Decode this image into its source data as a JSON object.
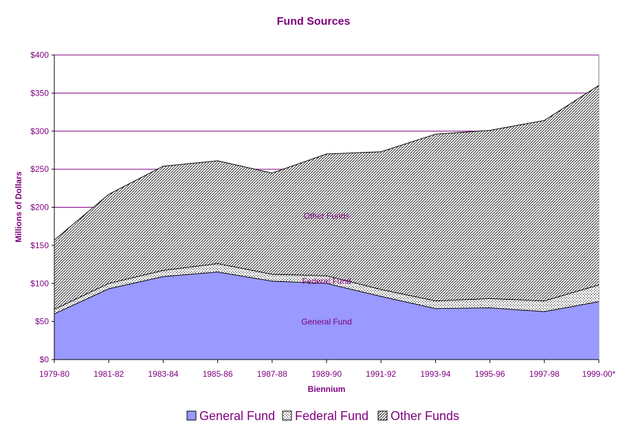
{
  "chart_data": {
    "type": "area",
    "stacked": true,
    "title": "Fund Sources",
    "xlabel": "Biennium",
    "ylabel": "Millions of Dollars",
    "ylim": [
      0,
      400
    ],
    "ytick_step": 50,
    "ytick_labels": [
      "$0",
      "$50",
      "$100",
      "$150",
      "$200",
      "$250",
      "$300",
      "$350",
      "$400"
    ],
    "categories": [
      "1979-80",
      "1981-82",
      "1983-84",
      "1985-86",
      "1987-88",
      "1989-90",
      "1991-92",
      "1993-94",
      "1995-96",
      "1997-98",
      "1999-00*"
    ],
    "series": [
      {
        "name": "General Fund",
        "values": [
          60,
          93,
          109,
          115,
          103,
          100,
          83,
          67,
          68,
          63,
          76
        ],
        "color": "#9999ff",
        "pattern": "solid",
        "label": "General Fund"
      },
      {
        "name": "Federal Fund",
        "values": [
          6,
          7,
          8,
          11,
          9,
          10,
          9,
          10,
          12,
          14,
          22
        ],
        "color": "#ffffff",
        "pattern": "dots",
        "label": "Federal Fund"
      },
      {
        "name": "Other Funds",
        "values": [
          91,
          117,
          137,
          135,
          133,
          160,
          181,
          219,
          221,
          237,
          262
        ],
        "color": "#ffffff",
        "pattern": "diagonal",
        "label": "Other Funds"
      }
    ],
    "gridlines": true,
    "gridline_color": "#800080",
    "legend": {
      "position": "bottom",
      "labels": [
        "General Fund",
        "Federal Fund",
        "Other Funds"
      ]
    }
  }
}
